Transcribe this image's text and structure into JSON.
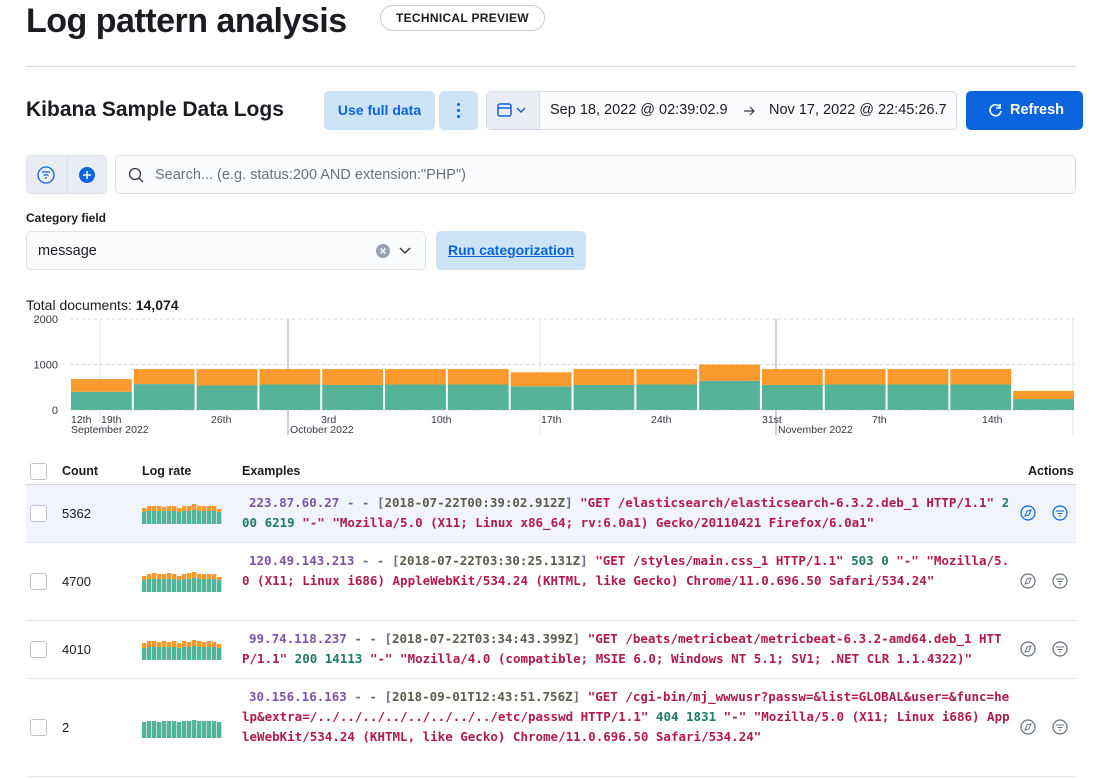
{
  "header": {
    "title": "Log pattern analysis",
    "badge": "TECHNICAL PREVIEW"
  },
  "toolbar": {
    "index_title": "Kibana Sample Data Logs",
    "use_full_data": "Use full data",
    "start_date": "Sep 18, 2022 @ 02:39:02.9",
    "end_date": "Nov 17, 2022 @ 22:45:26.7",
    "refresh": "Refresh"
  },
  "search": {
    "placeholder": "Search... (e.g. status:200 AND extension:\"PHP\")"
  },
  "category": {
    "label": "Category field",
    "value": "message",
    "run": "Run categorization"
  },
  "total": {
    "label": "Total documents:",
    "value": "14,074"
  },
  "chart_data": {
    "type": "bar",
    "stacked": true,
    "categories": [
      null,
      null,
      null,
      null,
      null,
      null,
      null,
      null,
      null,
      null,
      null,
      null,
      null,
      null,
      null,
      null
    ],
    "series": [
      {
        "color": "#54b399",
        "values": [
          400,
          570,
          540,
          560,
          550,
          560,
          560,
          520,
          550,
          560,
          640,
          550,
          560,
          560,
          560,
          240
        ]
      },
      {
        "color": "#f99a2e",
        "values": [
          280,
          330,
          360,
          340,
          350,
          340,
          340,
          310,
          350,
          340,
          360,
          350,
          340,
          340,
          340,
          180
        ]
      }
    ],
    "ylim": [
      0,
      2000
    ],
    "yticks": [
      0,
      1000,
      2000
    ],
    "grid": true,
    "x_tick_labels": [
      "12th",
      "19th",
      "26th",
      "3rd",
      "10th",
      "17th",
      "24th",
      "31st",
      "7th",
      "14th"
    ],
    "x_group_labels": [
      "September 2022",
      "October 2022",
      "November 2022"
    ]
  },
  "table": {
    "headers": [
      "Count",
      "Log rate",
      "Examples",
      "Actions"
    ],
    "rows": [
      {
        "count": 5362,
        "log_rate": [
          [
            12,
            13,
            13,
            13,
            13,
            13,
            13,
            12,
            13,
            13,
            14,
            13,
            13,
            13,
            13,
            12
          ],
          [
            4,
            5,
            5,
            5,
            4,
            5,
            5,
            4,
            5,
            5,
            6,
            5,
            5,
            5,
            5,
            3
          ]
        ],
        "example": [
          {
            "kind": "ip",
            "text": "223.87.60.27"
          },
          {
            "kind": "sep",
            "text": " - - ["
          },
          {
            "kind": "date",
            "text": "2018-07-22T00:39:02.912Z"
          },
          {
            "kind": "sep",
            "text": "] "
          },
          {
            "kind": "str",
            "text": "\"GET /elasticsearch/elasticsearch-6.3.2.deb_1 HTTP/1.1\""
          },
          {
            "kind": "num",
            "text": " 200 6219 "
          },
          {
            "kind": "str",
            "text": "\"-\" \"Mozilla/5.0 (X11; Linux x86_64; rv:6.0a1) Gecko/20110421 Firefox/6.0a1\""
          }
        ]
      },
      {
        "count": 4700,
        "log_rate": [
          [
            12,
            13,
            13,
            13,
            13,
            13,
            13,
            12,
            13,
            13,
            14,
            13,
            13,
            13,
            13,
            12
          ],
          [
            4,
            5,
            6,
            5,
            5,
            6,
            5,
            4,
            5,
            6,
            6,
            5,
            5,
            5,
            5,
            3
          ]
        ],
        "example": [
          {
            "kind": "ip",
            "text": "120.49.143.213"
          },
          {
            "kind": "sep",
            "text": " - - ["
          },
          {
            "kind": "date",
            "text": "2018-07-22T03:30:25.131Z"
          },
          {
            "kind": "sep",
            "text": "] "
          },
          {
            "kind": "str",
            "text": "\"GET /styles/main.css_1 HTTP/1.1\""
          },
          {
            "kind": "num",
            "text": " 503 0 "
          },
          {
            "kind": "str",
            "text": "\"-\" \"Mozilla/5.0 (X11; Linux i686) AppleWebKit/534.24 (KHTML, like Gecko) Chrome/11.0.696.50 Safari/534.24\""
          }
        ]
      },
      {
        "count": 4010,
        "log_rate": [
          [
            12,
            13,
            13,
            13,
            13,
            13,
            13,
            12,
            13,
            13,
            14,
            13,
            13,
            13,
            13,
            12
          ],
          [
            5,
            6,
            6,
            5,
            6,
            5,
            6,
            5,
            6,
            5,
            6,
            6,
            5,
            6,
            5,
            4
          ]
        ],
        "example": [
          {
            "kind": "ip",
            "text": "99.74.118.237"
          },
          {
            "kind": "sep",
            "text": " - - ["
          },
          {
            "kind": "date",
            "text": "2018-07-22T03:34:43.399Z"
          },
          {
            "kind": "sep",
            "text": "] "
          },
          {
            "kind": "str",
            "text": "\"GET /beats/metricbeat/metricbeat-6.3.2-amd64.deb_1 HTTP/1.1\""
          },
          {
            "kind": "num",
            "text": " 200 14113 "
          },
          {
            "kind": "str",
            "text": "\"-\" \"Mozilla/4.0 (compatible; MSIE 6.0; Windows NT 5.1; SV1; .NET CLR 1.1.4322)\""
          }
        ]
      },
      {
        "count": 2,
        "log_rate": [
          [
            16,
            17,
            17,
            16,
            17,
            17,
            17,
            16,
            17,
            17,
            18,
            17,
            17,
            17,
            17,
            16
          ],
          [
            0,
            0,
            0,
            0,
            0,
            0,
            0,
            0,
            0,
            0,
            0,
            0,
            0,
            0,
            0,
            0
          ]
        ],
        "example": [
          {
            "kind": "ip",
            "text": "30.156.16.163"
          },
          {
            "kind": "sep",
            "text": " - - ["
          },
          {
            "kind": "date",
            "text": "2018-09-01T12:43:51.756Z"
          },
          {
            "kind": "sep",
            "text": "] "
          },
          {
            "kind": "str",
            "text": "\"GET /cgi-bin/mj_wwwusr?passw=&list=GLOBAL&user=&func=help&extra=/../../../../../../../../etc/passwd HTTP/1.1\""
          },
          {
            "kind": "num",
            "text": " 404 1831 "
          },
          {
            "kind": "str",
            "text": "\"-\" \"Mozilla/5.0 (X11; Linux i686) AppleWebKit/534.24 (KHTML, like Gecko) Chrome/11.0.696.50 Safari/534.24\""
          }
        ]
      }
    ]
  }
}
